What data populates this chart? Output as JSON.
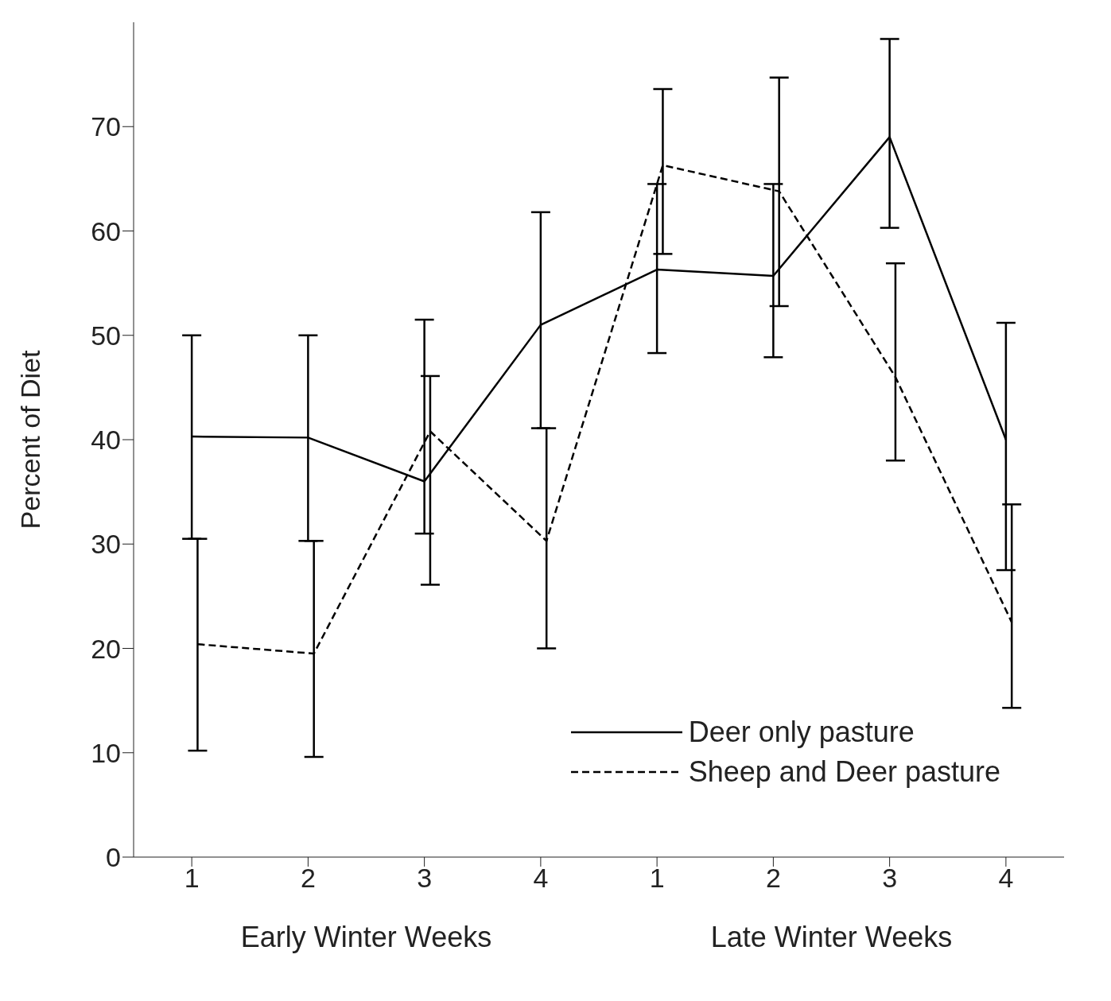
{
  "chart_data": {
    "type": "line",
    "ylabel": "Percent of Diet",
    "categories": [
      "1",
      "2",
      "3",
      "4",
      "1",
      "2",
      "3",
      "4"
    ],
    "series": [
      {
        "name": "Deer only pasture",
        "color": "#000000",
        "line_style": "solid",
        "values": [
          40.3,
          40.2,
          36,
          51,
          56.3,
          55.7,
          69,
          40
        ],
        "errors": [
          [
            30.5,
            50
          ],
          [
            30.3,
            50
          ],
          [
            31,
            51.5
          ],
          [
            41.1,
            61.8
          ],
          [
            48.3,
            64.5
          ],
          [
            47.9,
            64.5
          ],
          [
            60.3,
            78.4
          ],
          [
            27.5,
            51.2
          ]
        ]
      },
      {
        "name": "Sheep and Deer pasture",
        "color": "#000000",
        "line_style": "dashed",
        "values": [
          20.4,
          19.5,
          40.8,
          30.3,
          66.3,
          63.8,
          46,
          22.5
        ],
        "errors": [
          [
            10.2,
            30.5
          ],
          [
            9.6,
            30.3
          ],
          [
            26.1,
            46.1
          ],
          [
            20,
            41.1
          ],
          [
            57.8,
            73.6
          ],
          [
            52.8,
            74.7
          ],
          [
            38,
            56.9
          ],
          [
            14.3,
            33.8
          ]
        ]
      }
    ],
    "ylim": [
      0,
      80
    ],
    "yticks": [
      0,
      10,
      20,
      30,
      40,
      50,
      60,
      70
    ],
    "grid": false,
    "legend": "bottom right",
    "marker": "none",
    "annotations": [
      "Early Winter Weeks",
      "Late Winter Weeks"
    ]
  }
}
